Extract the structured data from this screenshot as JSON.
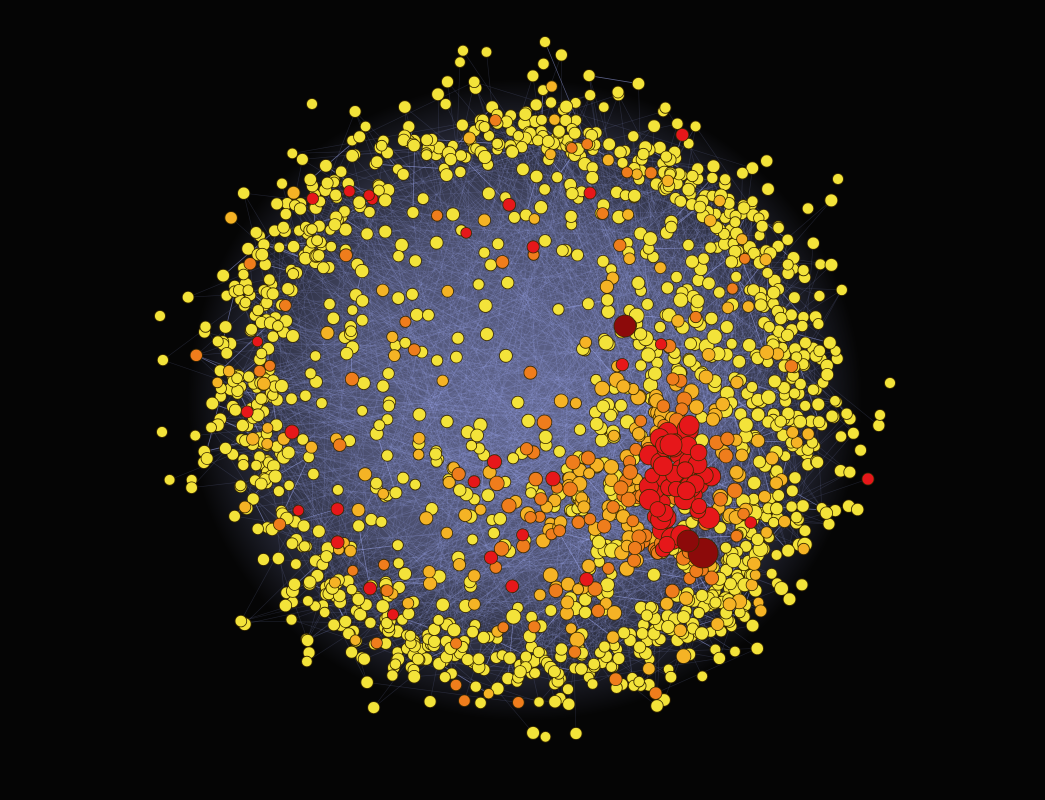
{
  "figure": {
    "kind": "network-graph",
    "background_color": "#050505",
    "edge_color": "#aab4ff",
    "node_outline_color": "#3a2a00",
    "node_color_scale": [
      {
        "level": "low",
        "color": "#f3e33a"
      },
      {
        "level": "medium-low",
        "color": "#f5b325"
      },
      {
        "level": "medium",
        "color": "#ef7d1c"
      },
      {
        "level": "high",
        "color": "#e6171a"
      },
      {
        "level": "highest",
        "color": "#8c0a0a"
      }
    ],
    "labels_shown": false,
    "legend_shown": false
  }
}
